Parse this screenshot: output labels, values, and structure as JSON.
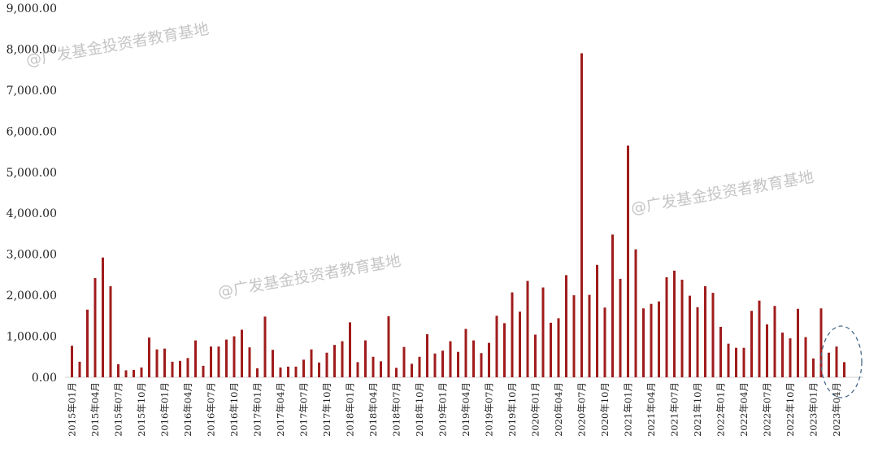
{
  "watermarks": [
    "@广发基金投资者教育基地",
    "@广发基金投资者教育基地",
    "@广发基金投资者教育基地"
  ],
  "colors": {
    "bar": "#a01c1c",
    "axis": "#cfcfcf",
    "highlight": "#4a6a8a"
  },
  "chart_data": {
    "type": "bar",
    "title": "",
    "xlabel": "",
    "ylabel": "",
    "ylim": [
      0,
      9000
    ],
    "yticks": [
      "0.00",
      "1,000.00",
      "2,000.00",
      "3,000.00",
      "4,000.00",
      "5,000.00",
      "6,000.00",
      "7,000.00",
      "8,000.00",
      "9,000.00"
    ],
    "xtick_labels": [
      "2015年01月",
      "2015年04月",
      "2015年07月",
      "2015年10月",
      "2016年01月",
      "2016年04月",
      "2016年07月",
      "2016年10月",
      "2017年01月",
      "2017年04月",
      "2017年07月",
      "2017年10月",
      "2018年01月",
      "2018年04月",
      "2018年07月",
      "2018年10月",
      "2019年01月",
      "2019年04月",
      "2019年07月",
      "2019年10月",
      "2020年01月",
      "2020年04月",
      "2020年07月",
      "2020年10月",
      "2021年01月",
      "2021年04月",
      "2021年07月",
      "2021年10月",
      "2022年01月",
      "2022年04月",
      "2022年07月",
      "2022年10月",
      "2023年01月",
      "2023年04月"
    ],
    "values": [
      770,
      380,
      1650,
      2420,
      2920,
      2220,
      320,
      170,
      180,
      240,
      970,
      680,
      700,
      380,
      400,
      470,
      900,
      280,
      750,
      750,
      920,
      1000,
      1160,
      730,
      220,
      1480,
      670,
      240,
      260,
      260,
      430,
      680,
      360,
      600,
      790,
      880,
      1340,
      370,
      900,
      500,
      390,
      1490,
      230,
      740,
      330,
      500,
      1050,
      580,
      650,
      880,
      620,
      1180,
      900,
      590,
      840,
      1500,
      1320,
      2070,
      1600,
      2350,
      1040,
      2190,
      1330,
      1440,
      2490,
      2000,
      7900,
      2010,
      2740,
      1700,
      3480,
      2400,
      5650,
      3120,
      1680,
      1790,
      1850,
      2440,
      2600,
      2380,
      1990,
      1710,
      2220,
      2060,
      1230,
      820,
      720,
      720,
      1620,
      1870,
      1290,
      1740,
      1090,
      950,
      1670,
      980,
      460,
      1680,
      600,
      750,
      370
    ],
    "annotation": "dashed ellipse highlighting 2023年04月 onward",
    "grid": false
  }
}
